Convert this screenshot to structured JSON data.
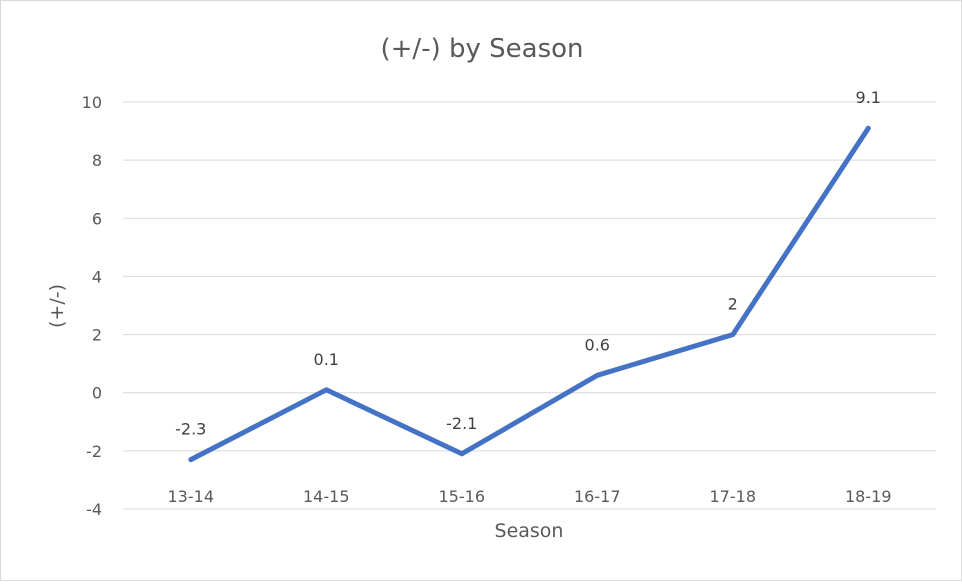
{
  "chart_data": {
    "type": "line",
    "title": "(+/-) by Season",
    "xlabel": "Season",
    "ylabel": "(+/-)",
    "categories": [
      "13-14",
      "14-15",
      "15-16",
      "16-17",
      "17-18",
      "18-19"
    ],
    "series": [
      {
        "values": [
          -2.3,
          0.1,
          -2.1,
          0.6,
          2,
          9.1
        ]
      }
    ],
    "data_labels": [
      "-2.3",
      "0.1",
      "-2.1",
      "0.6",
      "2",
      "9.1"
    ],
    "ylim": [
      -4,
      10
    ],
    "yticks": [
      10,
      8,
      6,
      4,
      2,
      0,
      -2,
      -4
    ],
    "ytick_labels": [
      "10",
      "8",
      "6",
      "4",
      "2",
      "0",
      "-2",
      "-4"
    ],
    "grid": true,
    "legend": "none",
    "colors": {
      "series": "#4472c4",
      "grid": "#d9d9d9",
      "text": "#595959"
    }
  }
}
